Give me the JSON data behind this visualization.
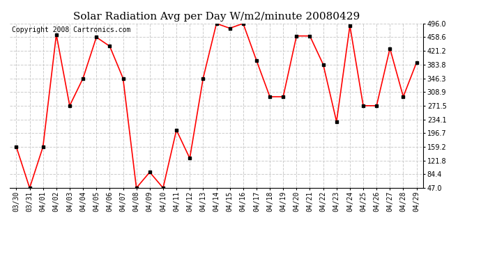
{
  "title": "Solar Radiation Avg per Day W/m2/minute 20080429",
  "copyright": "Copyright 2008 Cartronics.com",
  "dates": [
    "03/30",
    "03/31",
    "04/01",
    "04/02",
    "04/03",
    "04/04",
    "04/05",
    "04/06",
    "04/07",
    "04/08",
    "04/09",
    "04/10",
    "04/11",
    "04/12",
    "04/13",
    "04/14",
    "04/15",
    "04/16",
    "04/17",
    "04/18",
    "04/19",
    "04/20",
    "04/21",
    "04/22",
    "04/23",
    "04/24",
    "04/25",
    "04/26",
    "04/27",
    "04/28",
    "04/29"
  ],
  "values": [
    159.2,
    47.0,
    159.2,
    466.0,
    271.5,
    346.3,
    458.6,
    434.0,
    346.3,
    47.0,
    90.0,
    47.0,
    205.0,
    128.0,
    346.3,
    496.0,
    483.0,
    496.0,
    395.0,
    296.0,
    296.0,
    462.0,
    462.0,
    384.0,
    228.0,
    490.0,
    271.5,
    271.5,
    428.0,
    296.0,
    390.0
  ],
  "ymin": 47.0,
  "ymax": 496.0,
  "yticks": [
    47.0,
    84.4,
    121.8,
    159.2,
    196.7,
    234.1,
    271.5,
    308.9,
    346.3,
    383.8,
    421.2,
    458.6,
    496.0
  ],
  "line_color": "#ff0000",
  "marker_color": "#000000",
  "bg_color": "#ffffff",
  "grid_color": "#cccccc",
  "title_fontsize": 11,
  "copyright_fontsize": 7,
  "tick_fontsize": 7,
  "ytick_fontsize": 7
}
